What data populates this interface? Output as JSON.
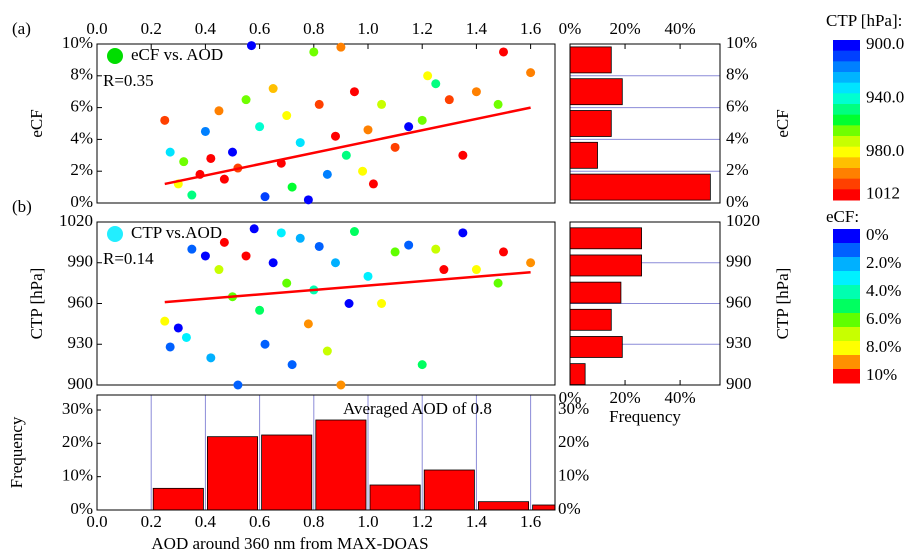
{
  "chart_data": [
    {
      "type": "scatter",
      "panel_label": "(a)",
      "ylabel": "eCF",
      "annotation": "R=0.35",
      "xlim": [
        0,
        1.69
      ],
      "xticks": [
        {
          "value": 0,
          "label": "0.0"
        },
        0.2,
        0.4,
        0.6,
        0.8,
        {
          "value": 1,
          "label": "1.0"
        },
        1.2,
        1.4,
        1.6
      ],
      "ylim": [
        0,
        10
      ],
      "yticks": [
        {
          "value": 0,
          "label": "0%"
        },
        {
          "value": 2,
          "label": "2%"
        },
        {
          "value": 4,
          "label": "4%"
        },
        {
          "value": 6,
          "label": "6%"
        },
        {
          "value": 8,
          "label": "8%"
        },
        {
          "value": 10,
          "label": "10%"
        }
      ],
      "series": [
        {
          "name": "eCF vs. AOD",
          "color": "#00dd00",
          "x": [
            0.25,
            0.27,
            0.3,
            0.32,
            0.35,
            0.38,
            0.4,
            0.42,
            0.45,
            0.47,
            0.5,
            0.52,
            0.55,
            0.57,
            0.6,
            0.62,
            0.65,
            0.68,
            0.7,
            0.72,
            0.75,
            0.78,
            0.8,
            0.82,
            0.85,
            0.88,
            0.9,
            0.92,
            0.95,
            0.98,
            1.0,
            1.02,
            1.05,
            1.1,
            1.15,
            1.2,
            1.22,
            1.25,
            1.3,
            1.35,
            1.4,
            1.48,
            1.5,
            1.6
          ],
          "values": [
            5.2,
            3.2,
            1.2,
            2.6,
            0.5,
            1.8,
            4.5,
            2.8,
            5.8,
            1.5,
            3.2,
            2.2,
            6.5,
            9.9,
            4.8,
            0.4,
            7.2,
            2.5,
            5.5,
            1.0,
            3.8,
            0.2,
            9.5,
            6.2,
            1.8,
            4.2,
            9.8,
            3.0,
            7.0,
            2.0,
            4.6,
            1.2,
            6.2,
            3.5,
            4.8,
            5.2,
            8.0,
            7.5,
            6.5,
            3.0,
            7.0,
            6.2,
            9.5,
            8.2
          ],
          "color_values": [
            1000,
            930,
            980,
            960,
            950,
            1010,
            920,
            1005,
            990,
            1012,
            905,
            1000,
            960,
            900,
            940,
            910,
            985,
            1008,
            975,
            955,
            930,
            900,
            965,
            1000,
            920,
            1010,
            990,
            950,
            1005,
            980,
            995,
            1010,
            970,
            1000,
            900,
            960,
            975,
            950,
            1000,
            1010,
            990,
            965,
            1012,
            995
          ]
        }
      ],
      "fit": {
        "color": "#ff0000",
        "x": [
          0.25,
          1.6
        ],
        "values": [
          1.2,
          6.0
        ]
      }
    },
    {
      "type": "barh",
      "ylabel": "eCF",
      "color": "#ff0000",
      "xlim": [
        0,
        54.5
      ],
      "xticks": [
        {
          "value": 0,
          "label": "0%"
        },
        {
          "value": 20,
          "label": "20%"
        },
        {
          "value": 40,
          "label": "40%"
        }
      ],
      "ylim": [
        0,
        10
      ],
      "yticks": [
        {
          "value": 0,
          "label": "0%"
        },
        {
          "value": 2,
          "label": "2%"
        },
        {
          "value": 4,
          "label": "4%"
        },
        {
          "value": 6,
          "label": "6%"
        },
        {
          "value": 8,
          "label": "8%"
        },
        {
          "value": 10,
          "label": "10%"
        }
      ],
      "y": [
        1,
        3,
        5,
        7,
        9
      ],
      "values": [
        51,
        10,
        15,
        19,
        15
      ]
    },
    {
      "type": "scatter",
      "panel_label": "(b)",
      "ylabel": "CTP [hPa]",
      "annotation": "R=0.14",
      "xlim": [
        0,
        1.69
      ],
      "ylim": [
        900,
        1020
      ],
      "yticks": [
        900,
        930,
        960,
        990,
        1020
      ],
      "series": [
        {
          "name": "CTP vs.AOD",
          "color": "#22eeff",
          "x": [
            0.25,
            0.27,
            0.3,
            0.33,
            0.35,
            0.4,
            0.42,
            0.45,
            0.47,
            0.5,
            0.52,
            0.55,
            0.58,
            0.6,
            0.62,
            0.65,
            0.68,
            0.7,
            0.72,
            0.75,
            0.78,
            0.8,
            0.82,
            0.85,
            0.88,
            0.9,
            0.93,
            0.95,
            1.0,
            1.05,
            1.1,
            1.15,
            1.2,
            1.25,
            1.28,
            1.35,
            1.4,
            1.48,
            1.5,
            1.6
          ],
          "values": [
            947,
            928,
            942,
            935,
            1000,
            995,
            920,
            985,
            1005,
            965,
            900,
            995,
            1015,
            955,
            930,
            990,
            1012,
            975,
            915,
            1008,
            945,
            970,
            1002,
            925,
            990,
            900,
            960,
            1013,
            980,
            960,
            998,
            1003,
            915,
            1000,
            985,
            1012,
            985,
            975,
            998,
            990
          ],
          "color_values": [
            8,
            1,
            0.5,
            3,
            1,
            0,
            2,
            7,
            10,
            6,
            1,
            10,
            0,
            5,
            1,
            0,
            3,
            6,
            1,
            2,
            9,
            4,
            1,
            7,
            2,
            9,
            0,
            5,
            3,
            8,
            6,
            1,
            5,
            7,
            10,
            0,
            8,
            6,
            10,
            9
          ]
        }
      ],
      "fit": {
        "color": "#ff0000",
        "x": [
          0.25,
          1.6
        ],
        "values": [
          961,
          983
        ]
      }
    },
    {
      "type": "barh",
      "ylabel": "CTP [hPa]",
      "xlabel": "Frequency",
      "color": "#ff0000",
      "xlim": [
        0,
        54.5
      ],
      "xticks": [
        {
          "value": 0,
          "label": "0%"
        },
        {
          "value": 20,
          "label": "20%"
        },
        {
          "value": 40,
          "label": "40%"
        }
      ],
      "ylim": [
        900,
        1020
      ],
      "yticks": [
        900,
        930,
        960,
        990,
        1020
      ],
      "y": [
        908,
        928,
        948,
        968,
        988,
        1008
      ],
      "values": [
        5.5,
        19,
        15,
        18.5,
        26,
        26
      ]
    },
    {
      "type": "histogram",
      "xlabel": "AOD around 360 nm from MAX-DOAS",
      "ylabel": "Frequency",
      "annotation": "Averaged AOD of 0.8",
      "color": "#ff0000",
      "xlim": [
        0,
        1.69
      ],
      "xticks": [
        {
          "value": 0,
          "label": "0.0"
        },
        0.2,
        0.4,
        0.6,
        0.8,
        {
          "value": 1,
          "label": "1.0"
        },
        1.2,
        1.4,
        1.6
      ],
      "ylim": [
        0,
        34.5
      ],
      "yticks": [
        {
          "value": 0,
          "label": "0%"
        },
        {
          "value": 10,
          "label": "10%"
        },
        {
          "value": 20,
          "label": "20%"
        },
        {
          "value": 30,
          "label": "30%"
        }
      ],
      "bins": [
        0.2,
        0.4,
        0.6,
        0.8,
        1.0,
        1.2,
        1.4,
        1.6,
        1.8
      ],
      "values": [
        6.5,
        22,
        22.5,
        27,
        7.5,
        12,
        2.5,
        1.5
      ]
    }
  ],
  "colorbars": [
    {
      "title": "CTP [hPa]:",
      "range": [
        900,
        1012
      ],
      "colors": [
        "#0000ff",
        "#0040ff",
        "#0080ff",
        "#00b4ff",
        "#00e4ff",
        "#00ffd0",
        "#00ff80",
        "#00ff30",
        "#70ff00",
        "#c8ff00",
        "#ffff00",
        "#ffc000",
        "#ff8000",
        "#ff4000",
        "#ff0000"
      ],
      "ticks": [
        {
          "value": 900,
          "label": "900.0"
        },
        {
          "value": 940,
          "label": "940.0"
        },
        {
          "value": 980,
          "label": "980.0"
        },
        1012
      ]
    },
    {
      "title": "eCF:",
      "range": [
        0,
        10
      ],
      "colors": [
        "#0000ff",
        "#0060ff",
        "#00b0ff",
        "#00f0ff",
        "#00ffb0",
        "#00ff60",
        "#60ff00",
        "#c8ff00",
        "#ffff00",
        "#ff9000",
        "#ff0000"
      ],
      "ticks": [
        {
          "value": 0,
          "label": "0%"
        },
        {
          "value": 2,
          "label": "2.0%"
        },
        {
          "value": 4,
          "label": "4.0%"
        },
        {
          "value": 6,
          "label": "6.0%"
        },
        {
          "value": 8,
          "label": "8.0%"
        },
        {
          "value": 10,
          "label": "10%"
        }
      ]
    }
  ]
}
